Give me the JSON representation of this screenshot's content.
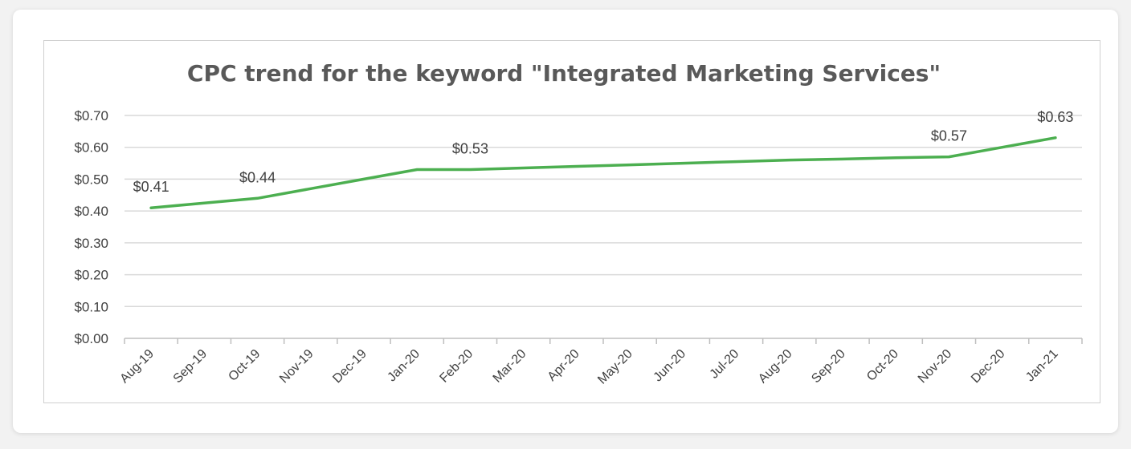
{
  "chart_data": {
    "type": "line",
    "title": "CPC trend for the keyword \"Integrated Marketing Services\"",
    "xlabel": "",
    "ylabel": "",
    "ylim": [
      0,
      0.7
    ],
    "yticks": [
      0,
      0.1,
      0.2,
      0.3,
      0.4,
      0.5,
      0.6,
      0.7
    ],
    "ytick_labels": [
      "$0.00",
      "$0.10",
      "$0.20",
      "$0.30",
      "$0.40",
      "$0.50",
      "$0.60",
      "$0.70"
    ],
    "categories": [
      "Aug-19",
      "Sep-19",
      "Oct-19",
      "Nov-19",
      "Dec-19",
      "Jan-20",
      "Feb-20",
      "Mar-20",
      "Apr-20",
      "May-20",
      "Jun-20",
      "Jul-20",
      "Aug-20",
      "Sep-20",
      "Oct-20",
      "Nov-20",
      "Dec-20",
      "Jan-21"
    ],
    "series": [
      {
        "values": [
          0.41,
          0.425,
          0.44,
          0.47,
          0.5,
          0.53,
          0.53,
          0.535,
          0.54,
          0.545,
          0.55,
          0.555,
          0.56,
          0.563,
          0.567,
          0.57,
          0.6,
          0.63
        ]
      }
    ],
    "data_labels": [
      {
        "index": 0,
        "text": "$0.41"
      },
      {
        "index": 2,
        "text": "$0.44"
      },
      {
        "index": 6,
        "text": "$0.53"
      },
      {
        "index": 15,
        "text": "$0.57"
      },
      {
        "index": 17,
        "text": "$0.63"
      }
    ],
    "grid": true,
    "legend": "none",
    "line_color": "#4caf50"
  }
}
